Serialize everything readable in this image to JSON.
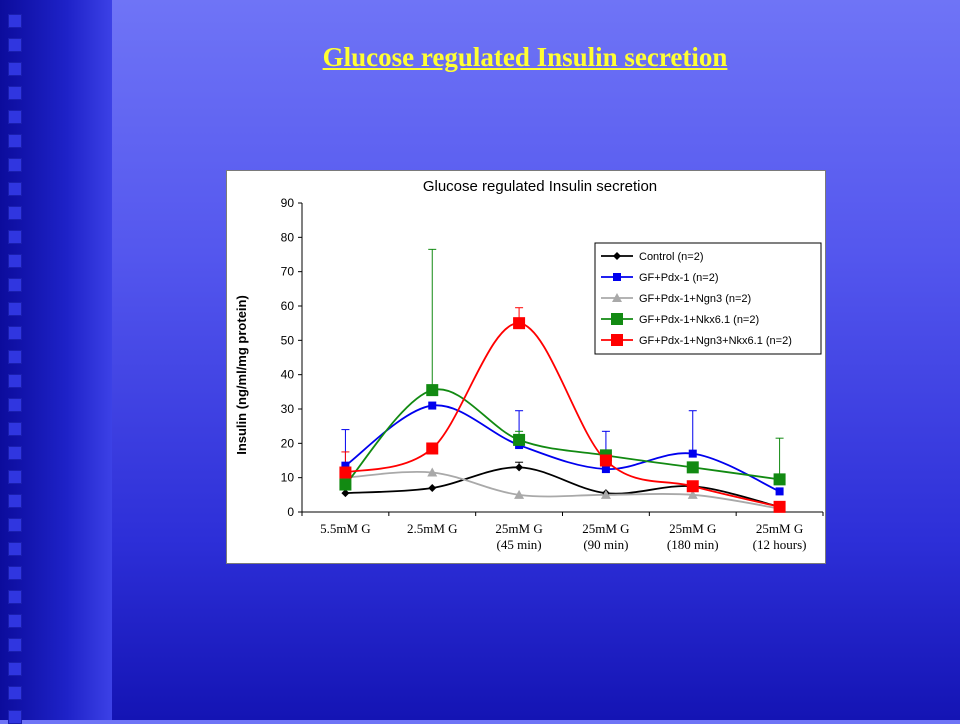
{
  "slide": {
    "title": "Glucose regulated Insulin secretion"
  },
  "chart_data": {
    "type": "line",
    "title": "Glucose regulated Insulin secretion",
    "ylabel": "Insulin (ng/ml/mg protein)",
    "xlabel": "",
    "ylim": [
      0,
      90
    ],
    "yticks": [
      "0",
      "10",
      "20",
      "30",
      "40",
      "50",
      "60",
      "70",
      "80",
      "90"
    ],
    "categories": [
      [
        "5.5mM G"
      ],
      [
        "2.5mM G"
      ],
      [
        "25mM G",
        "(45 min)"
      ],
      [
        "25mM G",
        "(90 min)"
      ],
      [
        "25mM G",
        "(180 min)"
      ],
      [
        "25mM G",
        "(12 hours)"
      ]
    ],
    "grid": false,
    "smooth": true,
    "legend_position": "top-right",
    "series": [
      {
        "name": "Control (n=2)",
        "color": "#000000",
        "marker": "diamond",
        "values": [
          5.5,
          7,
          13,
          5.5,
          7.5,
          1.5
        ],
        "err": [
          0,
          0,
          1.5,
          0,
          0,
          0
        ]
      },
      {
        "name": "GF+Pdx-1 (n=2)",
        "color": "#0000ee",
        "marker": "square",
        "values": [
          13.5,
          31,
          19.5,
          12.5,
          17,
          6
        ],
        "err": [
          10.5,
          0,
          10,
          11,
          12.5,
          0
        ]
      },
      {
        "name": "GF+Pdx-1+Ngn3 (n=2)",
        "color": "#a9a9a9",
        "marker": "triangle",
        "values": [
          10,
          11.5,
          5,
          5,
          5,
          1
        ],
        "err": [
          0,
          0,
          0,
          0,
          0,
          0
        ]
      },
      {
        "name": "GF+Pdx-1+Nkx6.1 (n=2)",
        "color": "#128a12",
        "marker": "square-big",
        "values": [
          8,
          35.5,
          21,
          16.5,
          13,
          9.5
        ],
        "err": [
          0,
          41,
          2.5,
          0,
          0,
          12
        ]
      },
      {
        "name": "GF+Pdx-1+Ngn3+Nkx6.1 (n=2)",
        "color": "#ff0000",
        "marker": "square-big",
        "values": [
          11.5,
          18.5,
          55,
          15,
          7.5,
          1.5
        ],
        "err": [
          6,
          0,
          4.5,
          0,
          0,
          0
        ]
      }
    ]
  }
}
